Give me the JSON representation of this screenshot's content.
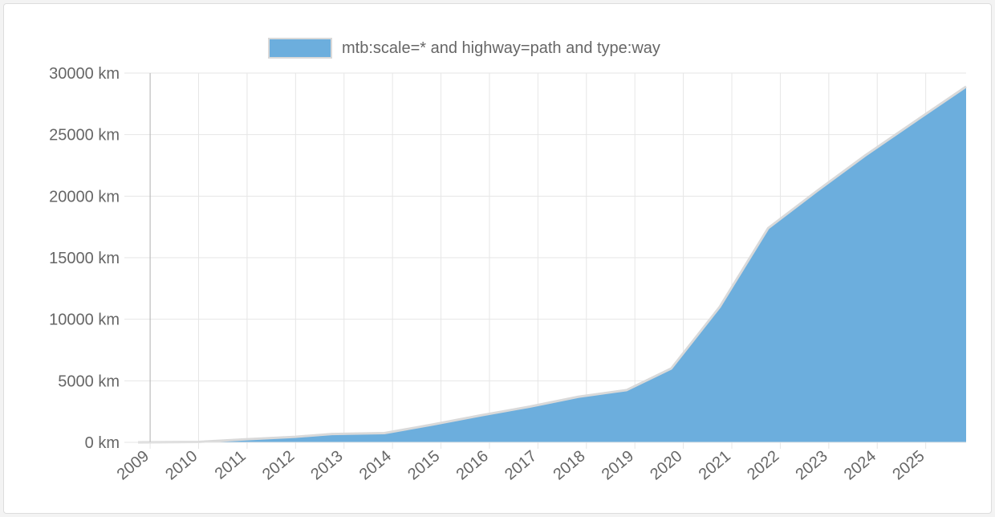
{
  "chart_data": {
    "type": "area",
    "legend": {
      "position": "top",
      "label": "mtb:scale=* and highway=path and type:way"
    },
    "yaxis": {
      "ticks": [
        "0 km",
        "5000 km",
        "10000 km",
        "15000 km",
        "20000 km",
        "25000 km",
        "30000 km"
      ],
      "range": [
        0,
        30000
      ],
      "unit": "km"
    },
    "xaxis": {
      "ticks": [
        "2009",
        "2010",
        "2011",
        "2012",
        "2013",
        "2014",
        "2015",
        "2016",
        "2017",
        "2018",
        "2019",
        "2020",
        "2021",
        "2022",
        "2023",
        "2024",
        "2025"
      ],
      "range": [
        "2008-10",
        "2025-11"
      ]
    },
    "grid": true,
    "colors": {
      "fill": "#6caedd",
      "line": "#d9d9d9",
      "grid": "#e6e6e6",
      "axis": "#b3b3b3",
      "text": "#666666"
    },
    "series": [
      {
        "name": "mtb:scale=* and highway=path and type:way",
        "points": [
          {
            "x": "2008-10",
            "y": 0
          },
          {
            "x": "2010-01",
            "y": 30
          },
          {
            "x": "2011-01",
            "y": 250
          },
          {
            "x": "2012-01",
            "y": 450
          },
          {
            "x": "2012-10",
            "y": 680
          },
          {
            "x": "2013-11",
            "y": 750
          },
          {
            "x": "2014-11",
            "y": 1450
          },
          {
            "x": "2015-11",
            "y": 2200
          },
          {
            "x": "2016-11",
            "y": 2900
          },
          {
            "x": "2017-11",
            "y": 3700
          },
          {
            "x": "2018-11",
            "y": 4250
          },
          {
            "x": "2019-10",
            "y": 6000
          },
          {
            "x": "2020-10",
            "y": 11000
          },
          {
            "x": "2021-10",
            "y": 17400
          },
          {
            "x": "2022-10",
            "y": 20400
          },
          {
            "x": "2023-10",
            "y": 23300
          },
          {
            "x": "2024-10",
            "y": 26000
          },
          {
            "x": "2025-11",
            "y": 28900
          }
        ]
      }
    ]
  }
}
